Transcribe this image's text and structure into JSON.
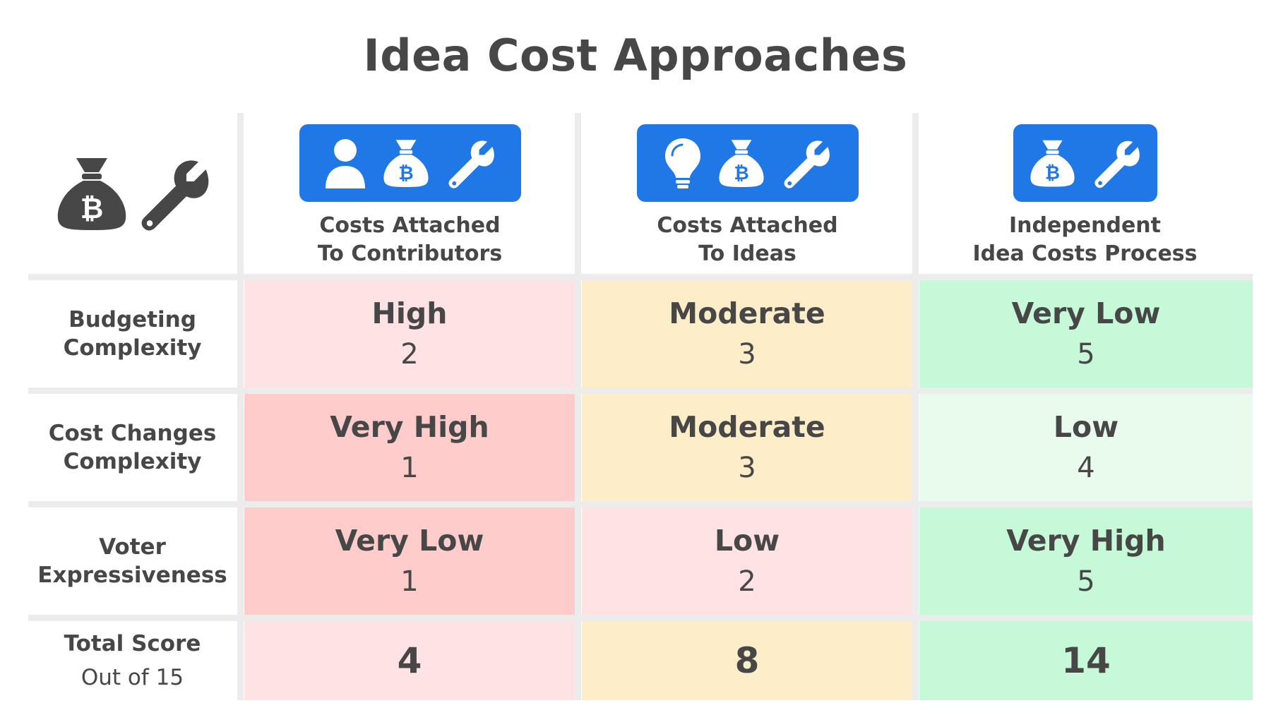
{
  "title": "Idea Cost Approaches",
  "colors": {
    "accent_blue": "#1f78e6",
    "very_poor": "#ffcccc",
    "poor": "#ffe3e4",
    "moderate": "#fdedc8",
    "good": "#e8fbed",
    "very_good": "#c5f9d7",
    "text": "#474747",
    "grid": "#ececec"
  },
  "corner_icons": [
    "money-bag-bitcoin-icon",
    "wrench-icon"
  ],
  "columns": [
    {
      "label_line1": "Costs Attached",
      "label_line2": "To Contributors",
      "icons": [
        "person-icon",
        "money-bag-bitcoin-icon",
        "wrench-icon"
      ]
    },
    {
      "label_line1": "Costs Attached",
      "label_line2": "To Ideas",
      "icons": [
        "lightbulb-icon",
        "money-bag-bitcoin-icon",
        "wrench-icon"
      ]
    },
    {
      "label_line1": "Independent",
      "label_line2": "Idea Costs Process",
      "icons": [
        "money-bag-bitcoin-icon",
        "wrench-icon"
      ]
    }
  ],
  "rows": [
    {
      "label_line1": "Budgeting",
      "label_line2": "Complexity",
      "cells": [
        {
          "level": "High",
          "score": "2"
        },
        {
          "level": "Moderate",
          "score": "3"
        },
        {
          "level": "Very Low",
          "score": "5"
        }
      ]
    },
    {
      "label_line1": "Cost Changes",
      "label_line2": "Complexity",
      "cells": [
        {
          "level": "Very High",
          "score": "1"
        },
        {
          "level": "Moderate",
          "score": "3"
        },
        {
          "level": "Low",
          "score": "4"
        }
      ]
    },
    {
      "label_line1": "Voter",
      "label_line2": "Expressiveness",
      "cells": [
        {
          "level": "Very Low",
          "score": "1"
        },
        {
          "level": "Low",
          "score": "2"
        },
        {
          "level": "Very High",
          "score": "5"
        }
      ]
    }
  ],
  "total": {
    "label": "Total Score",
    "sublabel": "Out of 15",
    "values": [
      "4",
      "8",
      "14"
    ]
  }
}
